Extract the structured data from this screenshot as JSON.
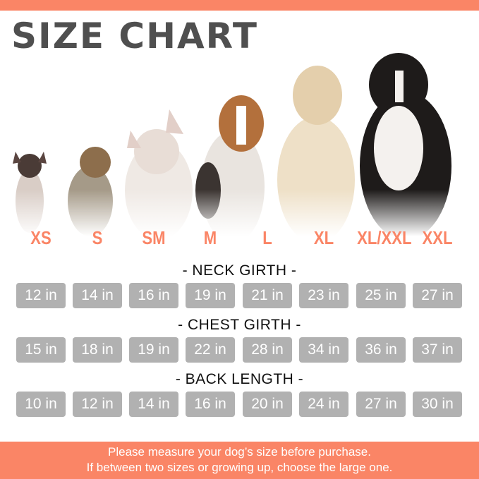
{
  "colors": {
    "accent": "#fa8566",
    "pill": "#b1b1b1",
    "title": "#4f4f4f"
  },
  "title": "SIZE CHART",
  "sizes": [
    "XS",
    "S",
    "SM",
    "M",
    "L",
    "XL",
    "XL/XXL",
    "XXL"
  ],
  "sections": [
    {
      "label": "- NECK GIRTH -",
      "values": [
        "12 in",
        "14 in",
        "16 in",
        "19 in",
        "21 in",
        "23 in",
        "25 in",
        "27 in"
      ]
    },
    {
      "label": "- CHEST GIRTH -",
      "values": [
        "15 in",
        "18 in",
        "19 in",
        "22 in",
        "28 in",
        "34 in",
        "36 in",
        "37 in"
      ]
    },
    {
      "label": "- BACK LENGTH -",
      "values": [
        "10 in",
        "12 in",
        "14 in",
        "16 in",
        "20 in",
        "24 in",
        "27 in",
        "30 in"
      ]
    }
  ],
  "footer": {
    "line1": "Please measure your dog’s size before purchase.",
    "line2": "If between two sizes or growing up, choose the large one."
  }
}
